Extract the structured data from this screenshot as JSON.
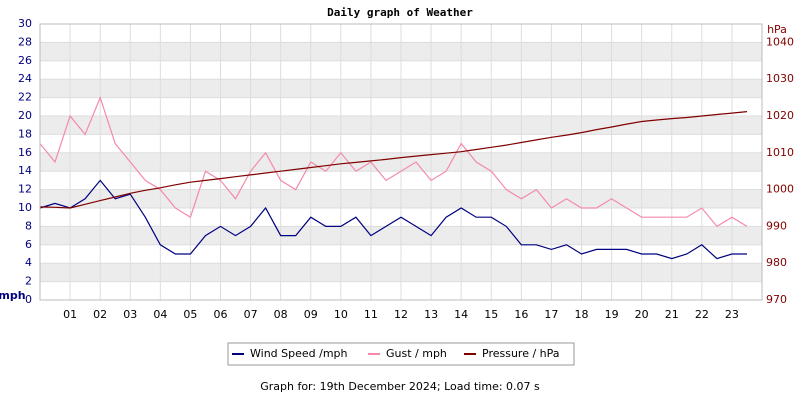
{
  "chart_data": {
    "type": "line",
    "title": "Daily graph of Weather",
    "y_label": "mph",
    "y2_label": "hPa",
    "footer": "Graph for: 19th December 2024; Load time: 0.07 s",
    "x": [
      0,
      0.5,
      1,
      1.5,
      2,
      2.5,
      3,
      3.5,
      4,
      4.5,
      5,
      5.5,
      6,
      6.5,
      7,
      7.5,
      8,
      8.5,
      9,
      9.5,
      10,
      10.5,
      11,
      11.5,
      12,
      12.5,
      13,
      13.5,
      14,
      14.5,
      15,
      15.5,
      16,
      16.5,
      17,
      17.5,
      18,
      18.5,
      19,
      19.5,
      20,
      20.5,
      21,
      21.5,
      22,
      22.5,
      23,
      23.5
    ],
    "xlim": [
      0,
      24
    ],
    "xticks": [
      {
        "value": 1,
        "label": "01"
      },
      {
        "value": 2,
        "label": "02"
      },
      {
        "value": 3,
        "label": "03"
      },
      {
        "value": 4,
        "label": "04"
      },
      {
        "value": 5,
        "label": "05"
      },
      {
        "value": 6,
        "label": "06"
      },
      {
        "value": 7,
        "label": "07"
      },
      {
        "value": 8,
        "label": "08"
      },
      {
        "value": 9,
        "label": "09"
      },
      {
        "value": 10,
        "label": "10"
      },
      {
        "value": 11,
        "label": "11"
      },
      {
        "value": 12,
        "label": "12"
      },
      {
        "value": 13,
        "label": "13"
      },
      {
        "value": 14,
        "label": "14"
      },
      {
        "value": 15,
        "label": "15"
      },
      {
        "value": 16,
        "label": "16"
      },
      {
        "value": 17,
        "label": "17"
      },
      {
        "value": 18,
        "label": "18"
      },
      {
        "value": 19,
        "label": "19"
      },
      {
        "value": 20,
        "label": "20"
      },
      {
        "value": 21,
        "label": "21"
      },
      {
        "value": 22,
        "label": "22"
      },
      {
        "value": 23,
        "label": "23"
      }
    ],
    "ylim": [
      0,
      30
    ],
    "yticks": [
      0,
      2,
      4,
      6,
      8,
      10,
      12,
      14,
      16,
      18,
      20,
      22,
      24,
      26,
      28,
      30
    ],
    "y2lim": [
      970,
      1045
    ],
    "y2ticks": [
      970,
      980,
      990,
      1000,
      1010,
      1020,
      1030,
      1040
    ],
    "grid": true,
    "legend": "bottom",
    "series": [
      {
        "name": "Wind Speed /mph",
        "color": "#000080",
        "values": [
          10,
          10.5,
          10,
          11,
          13,
          11,
          11.5,
          9,
          6,
          5,
          5,
          7,
          8,
          7,
          8,
          10,
          7,
          7,
          9,
          8,
          8,
          9,
          7,
          8,
          9,
          8,
          7,
          9,
          10,
          9,
          9,
          8,
          6,
          6,
          5.5,
          6,
          5,
          5.5,
          5.5,
          5.5,
          5,
          5,
          4.5,
          5,
          6,
          4.5,
          5,
          5
        ]
      },
      {
        "name": "Gust / mph",
        "color": "#f48aa8",
        "values": [
          17,
          15,
          20,
          18,
          22,
          17,
          15,
          13,
          12,
          10,
          9,
          14,
          13,
          11,
          14,
          16,
          13,
          12,
          15,
          14,
          16,
          14,
          15,
          13,
          14,
          15,
          13,
          14,
          17,
          15,
          14,
          12,
          11,
          12,
          10,
          11,
          10,
          10,
          11,
          10,
          9,
          9,
          9,
          9,
          10,
          8,
          9,
          8
        ]
      },
      {
        "name": "Pressure / hPa",
        "color": "#800000",
        "axis": "y2",
        "values": [
          995.3,
          995.2,
          995,
          996,
          997,
          998,
          999,
          999.8,
          1000.5,
          1001.3,
          1002,
          1002.5,
          1003,
          1003.5,
          1004,
          1004.5,
          1005,
          1005.5,
          1006,
          1006.5,
          1007,
          1007.4,
          1007.8,
          1008.2,
          1008.7,
          1009.1,
          1009.5,
          1009.9,
          1010.3,
          1010.9,
          1011.5,
          1012.1,
          1012.8,
          1013.5,
          1014.2,
          1014.8,
          1015.5,
          1016.3,
          1017,
          1017.8,
          1018.5,
          1018.9,
          1019.3,
          1019.6,
          1020,
          1020.4,
          1020.8,
          1021.2
        ]
      }
    ]
  }
}
